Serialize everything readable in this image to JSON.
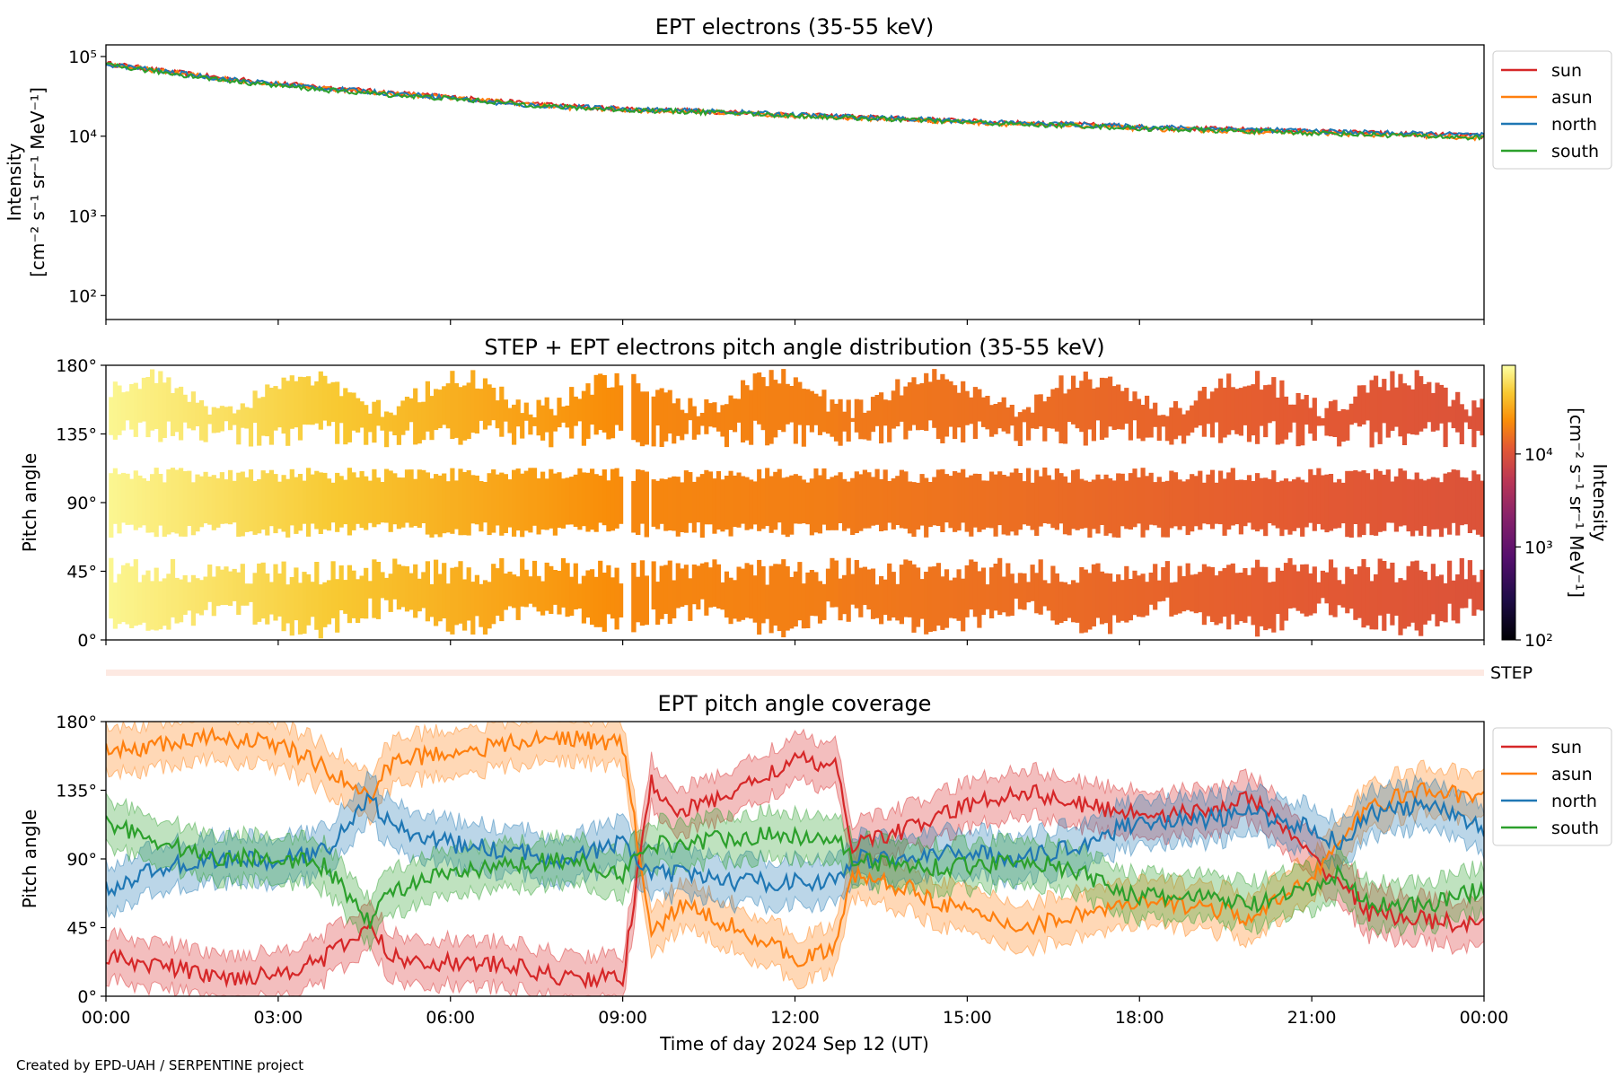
{
  "footer": {
    "credit": "Created by EPD-UAH / SERPENTINE project"
  },
  "xaxis": {
    "ticks": [
      "00:00",
      "03:00",
      "06:00",
      "09:00",
      "12:00",
      "15:00",
      "18:00",
      "21:00",
      "00:00"
    ],
    "label": "Time of day 2024 Sep 12 (UT)"
  },
  "colors": {
    "sun": "#d62728",
    "asun": "#ff7f0e",
    "north": "#1f77b4",
    "south": "#2ca02c"
  },
  "chart_data": [
    {
      "type": "line",
      "title": "EPT electrons (35-55 keV)",
      "ylabel_line1": "Intensity",
      "ylabel_line2": "[cm⁻² s⁻¹ sr⁻¹ MeV⁻¹]",
      "yscale": "log",
      "ylim": [
        50,
        140000
      ],
      "yticks": [
        {
          "value": 100,
          "label": "10²"
        },
        {
          "value": 1000,
          "label": "10³"
        },
        {
          "value": 10000,
          "label": "10⁴"
        },
        {
          "value": 100000,
          "label": "10⁵"
        }
      ],
      "x_hours": [
        0,
        1,
        2,
        3,
        4,
        5,
        6,
        7,
        8,
        9,
        10,
        11,
        12,
        13,
        14,
        15,
        16,
        17,
        18,
        19,
        20,
        21,
        22,
        23,
        24
      ],
      "series": [
        {
          "name": "sun",
          "values": [
            82000,
            66000,
            54000,
            46000,
            40000,
            35000,
            31000,
            27000,
            24000,
            22000,
            21000,
            20000,
            18500,
            17500,
            16500,
            15500,
            14500,
            14000,
            13000,
            12500,
            12000,
            11500,
            11000,
            10500,
            10000
          ]
        },
        {
          "name": "asun",
          "values": [
            80000,
            65000,
            53000,
            45000,
            39000,
            34000,
            30500,
            26500,
            23000,
            21500,
            20500,
            19500,
            18000,
            17000,
            16000,
            15000,
            14000,
            13500,
            12500,
            12000,
            11500,
            11000,
            10500,
            10000,
            9500
          ]
        },
        {
          "name": "north",
          "values": [
            80000,
            65000,
            53000,
            45000,
            39000,
            34500,
            30500,
            25000,
            23500,
            22000,
            21000,
            20000,
            18500,
            17500,
            16500,
            15500,
            14500,
            14000,
            13200,
            12600,
            12100,
            11600,
            11100,
            10700,
            10300
          ]
        },
        {
          "name": "south",
          "values": [
            78000,
            63000,
            51000,
            43000,
            37000,
            33000,
            29500,
            26000,
            23000,
            21500,
            20500,
            19500,
            18000,
            17000,
            16000,
            15000,
            14000,
            13500,
            12500,
            12000,
            11500,
            11000,
            10500,
            10000,
            9500
          ]
        }
      ],
      "legend": {
        "placement": "outside-right-top",
        "entries": [
          "sun",
          "asun",
          "north",
          "south"
        ]
      }
    },
    {
      "type": "heatmap",
      "title": "STEP + EPT electrons pitch angle distribution (35-55 keV)",
      "ylabel": "Pitch angle",
      "ylim": [
        0,
        180
      ],
      "yticks": [
        "0°",
        "45°",
        "90°",
        "135°",
        "180°"
      ],
      "colorbar": {
        "label_line1": "Intensity",
        "label_line2": "[cm⁻² s⁻¹ sr⁻¹ MeV⁻¹]",
        "scale": "log",
        "range": [
          100,
          90000
        ],
        "ticks": [
          {
            "value": 100,
            "label": "10²"
          },
          {
            "value": 1000,
            "label": "10³"
          },
          {
            "value": 10000,
            "label": "10⁴"
          }
        ]
      },
      "blocks": [
        {
          "start_h": 0.05,
          "end_h": 9.0,
          "intensity_start": 80000,
          "intensity_end": 22000
        },
        {
          "start_h": 9.15,
          "end_h": 9.45,
          "intensity_start": 21000,
          "intensity_end": 21000
        },
        {
          "start_h": 9.5,
          "end_h": 12.75,
          "intensity_start": 21000,
          "intensity_end": 18500
        },
        {
          "start_h": 12.75,
          "end_h": 24.0,
          "intensity_start": 18000,
          "intensity_end": 10000
        }
      ],
      "step_label": "STEP"
    },
    {
      "type": "line",
      "title": "EPT pitch angle coverage",
      "ylabel": "Pitch angle",
      "ylim": [
        0,
        180
      ],
      "yticks": [
        "0°",
        "45°",
        "90°",
        "135°",
        "180°"
      ],
      "x_hours": [
        0,
        1,
        2,
        3,
        3.8,
        4.6,
        5,
        6,
        7,
        8,
        9,
        9.5,
        10,
        11,
        12,
        12.7,
        13,
        14,
        15,
        16,
        17,
        18,
        19,
        20,
        21,
        21.5,
        22,
        23,
        24
      ],
      "series": [
        {
          "name": "sun",
          "values": [
            25,
            20,
            12,
            15,
            25,
            45,
            25,
            22,
            20,
            12,
            12,
            140,
            120,
            135,
            155,
            150,
            100,
            110,
            125,
            135,
            125,
            120,
            120,
            130,
            90,
            75,
            55,
            50,
            45
          ]
        },
        {
          "name": "asun",
          "values": [
            160,
            165,
            170,
            165,
            150,
            130,
            155,
            160,
            165,
            170,
            165,
            40,
            60,
            45,
            25,
            30,
            80,
            70,
            55,
            45,
            55,
            60,
            60,
            50,
            80,
            100,
            125,
            135,
            130
          ]
        },
        {
          "name": "north",
          "values": [
            70,
            85,
            90,
            88,
            95,
            130,
            110,
            100,
            95,
            90,
            100,
            80,
            80,
            75,
            75,
            75,
            90,
            90,
            95,
            90,
            100,
            115,
            115,
            120,
            110,
            100,
            120,
            125,
            110
          ]
        },
        {
          "name": "south",
          "values": [
            115,
            100,
            90,
            92,
            85,
            50,
            70,
            80,
            85,
            90,
            80,
            100,
            100,
            105,
            105,
            105,
            90,
            85,
            85,
            90,
            80,
            65,
            65,
            60,
            70,
            80,
            60,
            60,
            70
          ]
        }
      ],
      "band_halfwidth_deg": 15,
      "legend": {
        "placement": "outside-right-top",
        "entries": [
          "sun",
          "asun",
          "north",
          "south"
        ]
      }
    }
  ]
}
